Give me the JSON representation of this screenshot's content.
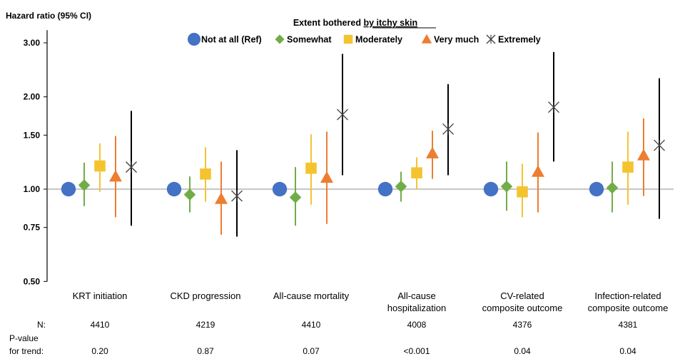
{
  "chart_data": {
    "type": "scatter",
    "y_scale": "log",
    "ylabel": "Hazard ratio (95% CI)",
    "ylim": [
      0.5,
      3.3
    ],
    "y_ticks": [
      "0.50",
      "0.75",
      "1.00",
      "1.50",
      "2.00",
      "3.00"
    ],
    "reference_line": 1.0,
    "legend_title_prefix": "Extent bothered ",
    "legend_title_underlined": "by itchy skin",
    "legend_placement": "top-center",
    "categories": [
      [
        "KRT initiation"
      ],
      [
        "CKD progression"
      ],
      [
        "All-cause mortality"
      ],
      [
        "All-cause",
        "hospitalization"
      ],
      [
        "CV-related",
        "composite outcome"
      ],
      [
        "Infection-related",
        "composite outcome"
      ]
    ],
    "series": [
      {
        "name": "Not at all (Ref)",
        "color": "#4472C4",
        "marker": "circle",
        "values": [
          1.0,
          1.0,
          1.0,
          1.0,
          1.0,
          1.0
        ],
        "ci": [
          null,
          null,
          null,
          null,
          null,
          null
        ]
      },
      {
        "name": "Somewhat",
        "color": "#70AD47",
        "marker": "diamond",
        "values": [
          1.03,
          0.96,
          0.94,
          1.02,
          1.02,
          1.01
        ],
        "ci": [
          [
            0.88,
            1.22
          ],
          [
            0.84,
            1.1
          ],
          [
            0.76,
            1.18
          ],
          [
            0.91,
            1.14
          ],
          [
            0.85,
            1.23
          ],
          [
            0.84,
            1.23
          ]
        ]
      },
      {
        "name": "Moderately",
        "color": "#F4C430",
        "marker": "square",
        "values": [
          1.19,
          1.12,
          1.17,
          1.13,
          0.98,
          1.18
        ],
        "ci": [
          [
            0.98,
            1.41
          ],
          [
            0.91,
            1.37
          ],
          [
            0.89,
            1.51
          ],
          [
            1.0,
            1.27
          ],
          [
            0.81,
            1.21
          ],
          [
            0.89,
            1.54
          ]
        ]
      },
      {
        "name": "Very much",
        "color": "#ED7D31",
        "marker": "triangle",
        "values": [
          1.1,
          0.93,
          1.09,
          1.31,
          1.14,
          1.29
        ],
        "ci": [
          [
            0.81,
            1.49
          ],
          [
            0.71,
            1.23
          ],
          [
            0.77,
            1.54
          ],
          [
            1.08,
            1.55
          ],
          [
            0.84,
            1.53
          ],
          [
            0.95,
            1.7
          ]
        ]
      },
      {
        "name": "Extremely",
        "color": "#404040",
        "marker": "x",
        "values": [
          1.18,
          0.95,
          1.75,
          1.57,
          1.85,
          1.39
        ],
        "ci": [
          [
            0.76,
            1.8
          ],
          [
            0.7,
            1.34
          ],
          [
            1.11,
            2.76
          ],
          [
            1.11,
            2.2
          ],
          [
            1.23,
            2.8
          ],
          [
            0.8,
            2.3
          ]
        ]
      }
    ],
    "table": {
      "n_label": "N:",
      "p_label_line1": "P-value",
      "p_label_line2": "for trend:",
      "n": [
        "4410",
        "4219",
        "4410",
        "4008",
        "4376",
        "4381"
      ],
      "p": [
        "0.20",
        "0.87",
        "0.07",
        "<0.001",
        "0.04",
        "0.04"
      ]
    }
  }
}
